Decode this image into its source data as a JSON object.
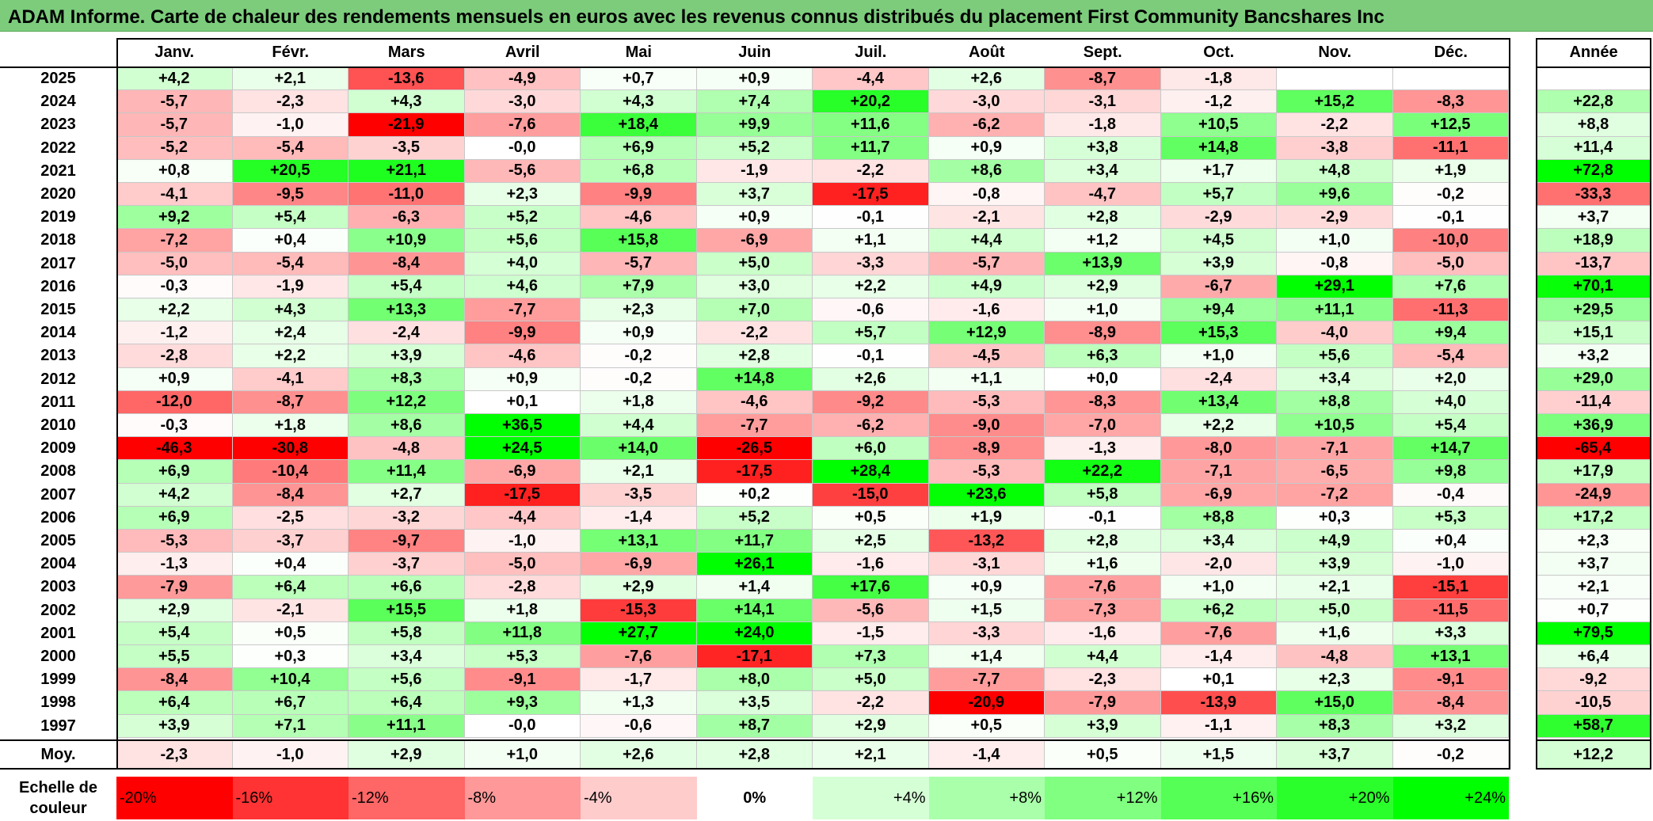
{
  "title": "ADAM Informe. Carte de chaleur des rendements mensuels en euros avec les revenus connus distribués du placement First Community Bancshares Inc",
  "chart_data": {
    "type": "heatmap",
    "title": "ADAM Informe. Carte de chaleur des rendements mensuels en euros avec les revenus connus distribués du placement First Community Bancshares Inc",
    "columns": [
      "Janv.",
      "Févr.",
      "Mars",
      "Avril",
      "Mai",
      "Juin",
      "Juil.",
      "Août",
      "Sept.",
      "Oct.",
      "Nov.",
      "Déc."
    ],
    "year_column_label": "Année",
    "rows": [
      {
        "year": "2025",
        "values": [
          "+4,2",
          "+2,1",
          "-13,6",
          "-4,9",
          "+0,7",
          "+0,9",
          "-4,4",
          "+2,6",
          "-8,7",
          "-1,8",
          "",
          ""
        ],
        "annual": ""
      },
      {
        "year": "2024",
        "values": [
          "-5,7",
          "-2,3",
          "+4,3",
          "-3,0",
          "+4,3",
          "+7,4",
          "+20,2",
          "-3,0",
          "-3,1",
          "-1,2",
          "+15,2",
          "-8,3"
        ],
        "annual": "+22,8"
      },
      {
        "year": "2023",
        "values": [
          "-5,7",
          "-1,0",
          "-21,9",
          "-7,6",
          "+18,4",
          "+9,9",
          "+11,6",
          "-6,2",
          "-1,8",
          "+10,5",
          "-2,2",
          "+12,5"
        ],
        "annual": "+8,8"
      },
      {
        "year": "2022",
        "values": [
          "-5,2",
          "-5,4",
          "-3,5",
          "-0,0",
          "+6,9",
          "+5,2",
          "+11,7",
          "+0,9",
          "+3,8",
          "+14,8",
          "-3,8",
          "-11,1"
        ],
        "annual": "+11,4"
      },
      {
        "year": "2021",
        "values": [
          "+0,8",
          "+20,5",
          "+21,1",
          "-5,6",
          "+6,8",
          "-1,9",
          "-2,2",
          "+8,6",
          "+3,4",
          "+1,7",
          "+4,8",
          "+1,9"
        ],
        "annual": "+72,8"
      },
      {
        "year": "2020",
        "values": [
          "-4,1",
          "-9,5",
          "-11,0",
          "+2,3",
          "-9,9",
          "+3,7",
          "-17,5",
          "-0,8",
          "-4,7",
          "+5,7",
          "+9,6",
          "-0,2"
        ],
        "annual": "-33,3"
      },
      {
        "year": "2019",
        "values": [
          "+9,2",
          "+5,4",
          "-6,3",
          "+5,2",
          "-4,6",
          "+0,9",
          "-0,1",
          "-2,1",
          "+2,8",
          "-2,9",
          "-2,9",
          "-0,1"
        ],
        "annual": "+3,7"
      },
      {
        "year": "2018",
        "values": [
          "-7,2",
          "+0,4",
          "+10,9",
          "+5,6",
          "+15,8",
          "-6,9",
          "+1,1",
          "+4,4",
          "+1,2",
          "+4,5",
          "+1,0",
          "-10,0"
        ],
        "annual": "+18,9"
      },
      {
        "year": "2017",
        "values": [
          "-5,0",
          "-5,4",
          "-8,4",
          "+4,0",
          "-5,7",
          "+5,0",
          "-3,3",
          "-5,7",
          "+13,9",
          "+3,9",
          "-0,8",
          "-5,0"
        ],
        "annual": "-13,7"
      },
      {
        "year": "2016",
        "values": [
          "-0,3",
          "-1,9",
          "+5,4",
          "+4,6",
          "+7,9",
          "+3,0",
          "+2,2",
          "+4,9",
          "+2,9",
          "-6,7",
          "+29,1",
          "+7,6"
        ],
        "annual": "+70,1"
      },
      {
        "year": "2015",
        "values": [
          "+2,2",
          "+4,3",
          "+13,3",
          "-7,7",
          "+2,3",
          "+7,0",
          "-0,6",
          "-1,6",
          "+1,0",
          "+9,4",
          "+11,1",
          "-11,3"
        ],
        "annual": "+29,5"
      },
      {
        "year": "2014",
        "values": [
          "-1,2",
          "+2,4",
          "-2,4",
          "-9,9",
          "+0,9",
          "-2,2",
          "+5,7",
          "+12,9",
          "-8,9",
          "+15,3",
          "-4,0",
          "+9,4"
        ],
        "annual": "+15,1"
      },
      {
        "year": "2013",
        "values": [
          "-2,8",
          "+2,2",
          "+3,9",
          "-4,6",
          "-0,2",
          "+2,8",
          "-0,1",
          "-4,5",
          "+6,3",
          "+1,0",
          "+5,6",
          "-5,4"
        ],
        "annual": "+3,2"
      },
      {
        "year": "2012",
        "values": [
          "+0,9",
          "-4,1",
          "+8,3",
          "+0,9",
          "-0,2",
          "+14,8",
          "+2,6",
          "+1,1",
          "+0,0",
          "-2,4",
          "+3,4",
          "+2,0"
        ],
        "annual": "+29,0"
      },
      {
        "year": "2011",
        "values": [
          "-12,0",
          "-8,7",
          "+12,2",
          "+0,1",
          "+1,8",
          "-4,6",
          "-9,2",
          "-5,3",
          "-8,3",
          "+13,4",
          "+8,8",
          "+4,0"
        ],
        "annual": "-11,4"
      },
      {
        "year": "2010",
        "values": [
          "-0,3",
          "+1,8",
          "+8,6",
          "+36,5",
          "+4,4",
          "-7,7",
          "-6,2",
          "-9,0",
          "-7,0",
          "+2,2",
          "+10,5",
          "+5,4"
        ],
        "annual": "+36,9"
      },
      {
        "year": "2009",
        "values": [
          "-46,3",
          "-30,8",
          "-4,8",
          "+24,5",
          "+14,0",
          "-26,5",
          "+6,0",
          "-8,9",
          "-1,3",
          "-8,0",
          "-7,1",
          "+14,7"
        ],
        "annual": "-65,4"
      },
      {
        "year": "2008",
        "values": [
          "+6,9",
          "-10,4",
          "+11,4",
          "-6,9",
          "+2,1",
          "-17,5",
          "+28,4",
          "-5,3",
          "+22,2",
          "-7,1",
          "-6,5",
          "+9,8"
        ],
        "annual": "+17,9"
      },
      {
        "year": "2007",
        "values": [
          "+4,2",
          "-8,4",
          "+2,7",
          "-17,5",
          "-3,5",
          "+0,2",
          "-15,0",
          "+23,6",
          "+5,8",
          "-6,9",
          "-7,2",
          "-0,4"
        ],
        "annual": "-24,9"
      },
      {
        "year": "2006",
        "values": [
          "+6,9",
          "-2,5",
          "-3,2",
          "-4,4",
          "-1,4",
          "+5,2",
          "+0,5",
          "+1,9",
          "-0,1",
          "+8,8",
          "+0,3",
          "+5,3"
        ],
        "annual": "+17,2"
      },
      {
        "year": "2005",
        "values": [
          "-5,3",
          "-3,7",
          "-9,7",
          "-1,0",
          "+13,1",
          "+11,7",
          "+2,5",
          "-13,2",
          "+2,8",
          "+3,4",
          "+4,9",
          "+0,4"
        ],
        "annual": "+2,3"
      },
      {
        "year": "2004",
        "values": [
          "-1,3",
          "+0,4",
          "-3,7",
          "-5,0",
          "-6,9",
          "+26,1",
          "-1,6",
          "-3,1",
          "+1,6",
          "-2,0",
          "+3,9",
          "-1,0"
        ],
        "annual": "+3,7"
      },
      {
        "year": "2003",
        "values": [
          "-7,9",
          "+6,4",
          "+6,6",
          "-2,8",
          "+2,9",
          "+1,4",
          "+17,6",
          "+0,9",
          "-7,6",
          "+1,0",
          "+2,1",
          "-15,1"
        ],
        "annual": "+2,1"
      },
      {
        "year": "2002",
        "values": [
          "+2,9",
          "-2,1",
          "+15,5",
          "+1,8",
          "-15,3",
          "+14,1",
          "-5,6",
          "+1,5",
          "-7,3",
          "+6,2",
          "+5,0",
          "-11,5"
        ],
        "annual": "+0,7"
      },
      {
        "year": "2001",
        "values": [
          "+5,4",
          "+0,5",
          "+5,8",
          "+11,8",
          "+27,7",
          "+24,0",
          "-1,5",
          "-3,3",
          "-1,6",
          "-7,6",
          "+1,6",
          "+3,3"
        ],
        "annual": "+79,5"
      },
      {
        "year": "2000",
        "values": [
          "+5,5",
          "+0,3",
          "+3,4",
          "+5,3",
          "-7,6",
          "-17,1",
          "+7,3",
          "+1,4",
          "+4,4",
          "-1,4",
          "-4,8",
          "+13,1"
        ],
        "annual": "+6,4"
      },
      {
        "year": "1999",
        "values": [
          "-8,4",
          "+10,4",
          "+5,6",
          "-9,1",
          "-1,7",
          "+8,0",
          "+5,0",
          "-7,7",
          "-2,3",
          "+0,1",
          "+2,3",
          "-9,1"
        ],
        "annual": "-9,2"
      },
      {
        "year": "1998",
        "values": [
          "+6,4",
          "+6,7",
          "+6,4",
          "+9,3",
          "+1,3",
          "+3,5",
          "-2,2",
          "-20,9",
          "-7,9",
          "-13,9",
          "+15,0",
          "-8,4"
        ],
        "annual": "-10,5"
      },
      {
        "year": "1997",
        "values": [
          "+3,9",
          "+7,1",
          "+11,1",
          "-0,0",
          "-0,6",
          "+8,7",
          "+2,9",
          "+0,5",
          "+3,9",
          "-1,1",
          "+8,3",
          "+3,2"
        ],
        "annual": "+58,7"
      }
    ],
    "average": {
      "label": "Moy.",
      "values": [
        "-2,3",
        "-1,0",
        "+2,9",
        "+1,0",
        "+2,6",
        "+2,8",
        "+2,1",
        "-1,4",
        "+0,5",
        "+1,5",
        "+3,7",
        "-0,2"
      ],
      "annual": "+12,2"
    },
    "color_scale": {
      "label_line1": "Echelle de",
      "label_line2": "couleur",
      "stops": [
        {
          "label": "-20%",
          "value": -20
        },
        {
          "label": "-16%",
          "value": -16
        },
        {
          "label": "-12%",
          "value": -12
        },
        {
          "label": "-8%",
          "value": -8
        },
        {
          "label": "-4%",
          "value": -4
        },
        {
          "label": "0%",
          "value": 0
        },
        {
          "label": "+4%",
          "value": 4
        },
        {
          "label": "+8%",
          "value": 8
        },
        {
          "label": "+12%",
          "value": 12
        },
        {
          "label": "+16%",
          "value": 16
        },
        {
          "label": "+20%",
          "value": 20
        },
        {
          "label": "+24%",
          "value": 24
        }
      ],
      "min_color": "#ff0000",
      "zero_color": "#ffffff",
      "max_color": "#00ff00"
    }
  }
}
